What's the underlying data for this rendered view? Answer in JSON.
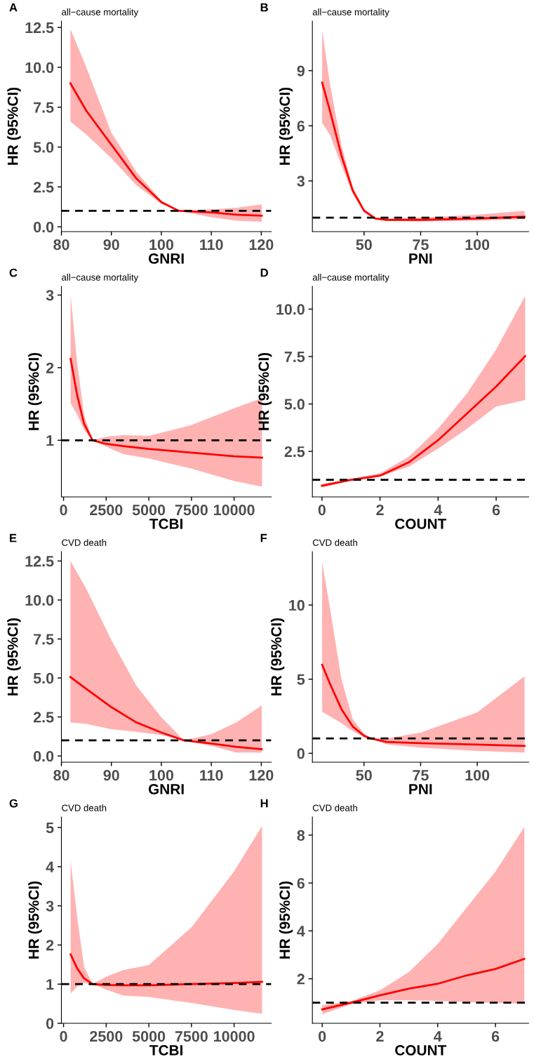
{
  "chart_data": [
    {
      "type": "line",
      "title": "all−cause mortality",
      "annotations": [
        "A"
      ],
      "xlabel": "GNRI",
      "ylabel": "HR (95%CI)",
      "x": [
        81.8,
        85,
        90,
        95,
        100,
        103.5,
        110,
        115,
        120.1
      ],
      "xlim": [
        80,
        122
      ],
      "xticks": [
        80,
        90,
        100,
        110,
        120
      ],
      "ylim": [
        -0.3,
        12.9
      ],
      "yticks": [
        {
          "value": 0,
          "label": "0.0"
        },
        2.5,
        {
          "value": 5,
          "label": "5.0"
        },
        7.5,
        {
          "value": 10,
          "label": "10.0"
        },
        12.5
      ],
      "ref_lines": [
        {
          "axis": "y",
          "value": 1,
          "color": "#000000",
          "line_style": "dashed"
        }
      ],
      "series": [
        {
          "color": "#ff0000",
          "values": [
            9.0,
            7.27,
            5.15,
            3.03,
            1.55,
            1.0,
            0.9,
            0.76,
            0.7
          ],
          "lower": [
            6.6,
            5.78,
            4.3,
            2.6,
            1.44,
            1.0,
            0.6,
            0.38,
            0.32
          ],
          "upper": [
            12.4,
            10.0,
            5.9,
            3.45,
            1.65,
            1.0,
            1.1,
            1.2,
            1.4
          ]
        }
      ]
    },
    {
      "type": "line",
      "title": "all−cause mortality",
      "annotations": [
        "B"
      ],
      "xlabel": "PNI",
      "ylabel": "HR (95%CI)",
      "x": [
        31.5,
        35,
        40,
        45,
        50,
        55,
        60,
        75,
        100,
        120.9
      ],
      "xlim": [
        27.2,
        122.7
      ],
      "xticks": [
        50,
        75,
        100
      ],
      "ylim": [
        0.24,
        11.7
      ],
      "yticks": [
        3,
        6,
        9
      ],
      "ref_lines": [
        {
          "axis": "y",
          "value": 1,
          "color": "#000000",
          "line_style": "dashed"
        }
      ],
      "series": [
        {
          "color": "#ff0000",
          "values": [
            8.35,
            6.8,
            4.4,
            2.48,
            1.38,
            0.95,
            0.88,
            0.88,
            0.95,
            1.05
          ],
          "lower": [
            6.15,
            5.5,
            3.85,
            2.3,
            1.28,
            0.9,
            0.83,
            0.79,
            0.83,
            0.92
          ],
          "upper": [
            11.2,
            8.25,
            4.95,
            2.66,
            1.47,
            1.0,
            0.92,
            1.0,
            1.16,
            1.38
          ]
        }
      ]
    },
    {
      "type": "line",
      "title": "all−cause mortality",
      "annotations": [
        "C"
      ],
      "xlabel": "TCBI",
      "ylabel": "HR (95%CI)",
      "x": [
        415,
        800,
        1200,
        1700,
        2500,
        3500,
        5000,
        7500,
        10000,
        11640
      ],
      "xlim": [
        -126,
        12180
      ],
      "xticks": [
        0,
        2500,
        5000,
        7500,
        10000
      ],
      "ylim": [
        0.22,
        3.12
      ],
      "yticks": [
        1,
        2,
        3
      ],
      "ref_lines": [
        {
          "axis": "y",
          "value": 1,
          "color": "#000000",
          "line_style": "dashed"
        }
      ],
      "series": [
        {
          "color": "#ff0000",
          "values": [
            2.12,
            1.62,
            1.23,
            1.0,
            0.95,
            0.92,
            0.88,
            0.83,
            0.78,
            0.76
          ],
          "lower": [
            1.51,
            1.35,
            1.14,
            1.0,
            0.91,
            0.81,
            0.75,
            0.61,
            0.44,
            0.36
          ],
          "upper": [
            3.0,
            2.06,
            1.35,
            1.0,
            1.05,
            1.07,
            1.06,
            1.21,
            1.44,
            1.58
          ]
        }
      ]
    },
    {
      "type": "line",
      "title": "all−cause mortality",
      "annotations": [
        "D"
      ],
      "xlabel": "COUNT",
      "ylabel": "HR (95%CI)",
      "x": [
        0,
        1,
        2,
        3,
        4,
        5,
        6,
        7
      ],
      "xlim": [
        -0.33,
        7.12
      ],
      "xticks": [
        0,
        2,
        4,
        6
      ],
      "ylim": [
        0.1,
        11.2
      ],
      "yticks": [
        2.5,
        {
          "value": 5,
          "label": "5.0"
        },
        7.5,
        {
          "value": 10,
          "label": "10.0"
        }
      ],
      "ref_lines": [
        {
          "axis": "y",
          "value": 1,
          "color": "#000000",
          "line_style": "dashed"
        }
      ],
      "series": [
        {
          "color": "#ff0000",
          "values": [
            0.69,
            1.0,
            1.22,
            1.93,
            3.09,
            4.5,
            5.92,
            7.52
          ],
          "lower": [
            0.6,
            0.95,
            1.17,
            1.7,
            2.64,
            3.7,
            4.86,
            5.21
          ],
          "upper": [
            0.78,
            1.05,
            1.35,
            2.23,
            3.7,
            5.57,
            7.87,
            10.7
          ]
        }
      ]
    },
    {
      "type": "line",
      "title": "CVD death",
      "annotations": [
        "E"
      ],
      "xlabel": "GNRI",
      "ylabel": "HR (95%CI)",
      "x": [
        81.8,
        85,
        90,
        95,
        100,
        104.5,
        110,
        115,
        120.1
      ],
      "xlim": [
        80,
        122
      ],
      "xticks": [
        80,
        90,
        100,
        110,
        120
      ],
      "ylim": [
        -0.4,
        13.1
      ],
      "yticks": [
        {
          "value": 0,
          "label": "0.0"
        },
        2.5,
        {
          "value": 5,
          "label": "5.0"
        },
        7.5,
        {
          "value": 10,
          "label": "10.0"
        },
        12.5
      ],
      "ref_lines": [
        {
          "axis": "y",
          "value": 1,
          "color": "#000000",
          "line_style": "dashed"
        }
      ],
      "series": [
        {
          "color": "#ff0000",
          "values": [
            5.06,
            4.3,
            3.13,
            2.15,
            1.5,
            1.0,
            0.8,
            0.58,
            0.43
          ],
          "lower": [
            2.15,
            2.05,
            1.72,
            1.55,
            1.34,
            1.0,
            0.65,
            0.22,
            0.22
          ],
          "upper": [
            12.5,
            10.7,
            7.43,
            4.5,
            2.48,
            1.0,
            1.4,
            2.15,
            3.23
          ]
        }
      ]
    },
    {
      "type": "line",
      "title": "CVD death",
      "annotations": [
        "F"
      ],
      "xlabel": "PNI",
      "ylabel": "HR (95%CI)",
      "x": [
        31.5,
        35,
        40,
        45,
        50,
        53,
        60,
        75,
        100,
        120.9
      ],
      "xlim": [
        27.2,
        122.7
      ],
      "xticks": [
        50,
        75,
        100
      ],
      "ylim": [
        -0.6,
        13.6
      ],
      "yticks": [
        0,
        5,
        10
      ],
      "ref_lines": [
        {
          "axis": "y",
          "value": 1,
          "color": "#000000",
          "line_style": "dashed"
        }
      ],
      "series": [
        {
          "color": "#ff0000",
          "values": [
            5.97,
            4.68,
            2.99,
            1.81,
            1.18,
            1.0,
            0.77,
            0.68,
            0.59,
            0.5
          ],
          "lower": [
            2.8,
            2.49,
            2.04,
            1.49,
            1.11,
            1.0,
            0.59,
            0.38,
            0.16,
            0.05
          ],
          "upper": [
            12.9,
            9.77,
            5.02,
            2.31,
            1.33,
            1.0,
            1.0,
            1.4,
            2.76,
            5.2
          ]
        }
      ]
    },
    {
      "type": "line",
      "title": "CVD death",
      "annotations": [
        "G"
      ],
      "xlabel": "TCBI",
      "ylabel": "HR (95%CI)",
      "x": [
        415,
        800,
        1200,
        1700,
        2500,
        3500,
        5000,
        7500,
        10000,
        11640
      ],
      "xlim": [
        -126,
        12180
      ],
      "xticks": [
        0,
        2500,
        5000,
        7500,
        10000
      ],
      "ylim": [
        0,
        5.27
      ],
      "yticks": [
        0,
        1,
        2,
        3,
        4,
        5
      ],
      "ref_lines": [
        {
          "axis": "y",
          "value": 1,
          "color": "#000000",
          "line_style": "dashed"
        }
      ],
      "series": [
        {
          "color": "#ff0000",
          "values": [
            1.76,
            1.4,
            1.15,
            1.0,
            0.98,
            0.97,
            0.97,
            1.0,
            1.03,
            1.06
          ],
          "lower": [
            0.76,
            0.94,
            1.03,
            1.0,
            0.86,
            0.71,
            0.67,
            0.52,
            0.34,
            0.24
          ],
          "upper": [
            4.15,
            2.7,
            1.45,
            1.0,
            1.19,
            1.36,
            1.49,
            2.45,
            3.88,
            5.04
          ]
        }
      ]
    },
    {
      "type": "line",
      "title": "CVD death",
      "annotations": [
        "H"
      ],
      "xlabel": "COUNT",
      "ylabel": "HR (95%CI)",
      "x": [
        0,
        1,
        2,
        3,
        4,
        5,
        6,
        7
      ],
      "xlim": [
        -0.34,
        7.15
      ],
      "xticks": [
        0,
        2,
        4,
        6
      ],
      "ylim": [
        0.14,
        8.76
      ],
      "yticks": [
        2,
        4,
        6,
        8
      ],
      "ref_lines": [
        {
          "axis": "y",
          "value": 1,
          "color": "#000000",
          "line_style": "dashed"
        }
      ],
      "series": [
        {
          "color": "#ff0000",
          "values": [
            0.72,
            1.0,
            1.31,
            1.59,
            1.79,
            2.14,
            2.41,
            2.83
          ],
          "lower": [
            0.52,
            0.94,
            1.1,
            1.1,
            1.08,
            1.03,
            0.99,
            0.97
          ],
          "upper": [
            0.9,
            1.06,
            1.52,
            2.28,
            3.45,
            4.97,
            6.48,
            8.34
          ]
        }
      ]
    }
  ]
}
